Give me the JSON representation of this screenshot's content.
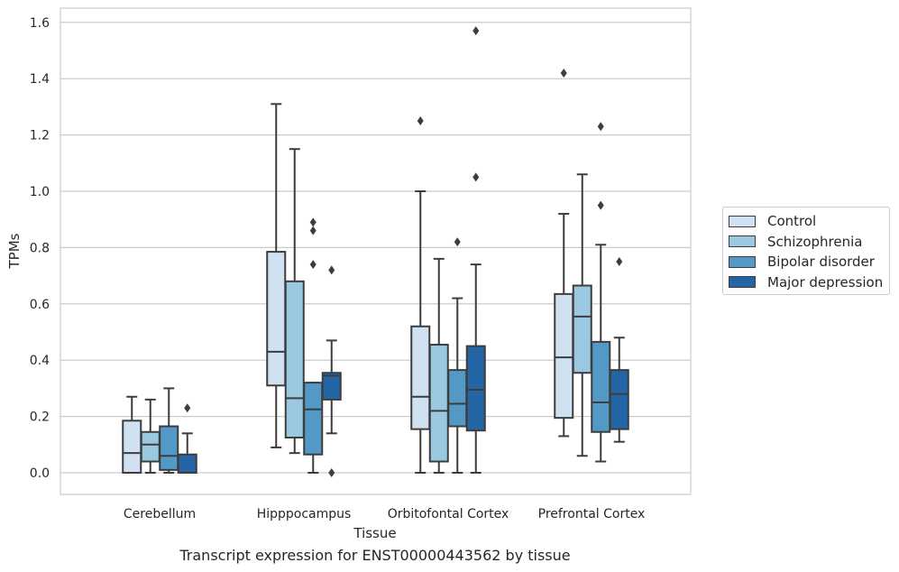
{
  "chart_data": {
    "type": "box",
    "title": "Transcript expression for ENST00000443562 by tissue",
    "xlabel": "Tissue",
    "ylabel": "TPMs",
    "ylim": [
      -0.08,
      1.65
    ],
    "yticks": [
      0.0,
      0.2,
      0.4,
      0.6,
      0.8,
      1.0,
      1.2,
      1.4,
      1.6
    ],
    "ytick_labels": [
      "0.0",
      "0.2",
      "0.4",
      "0.6",
      "0.8",
      "1.0",
      "1.2",
      "1.4",
      "1.6"
    ],
    "grid": "horizontal",
    "legend_position": "right",
    "categories": [
      "Cerebellum",
      "Hipppocampus",
      "Orbitofontal Cortex",
      "Prefrontal Cortex"
    ],
    "series": [
      {
        "name": "Control",
        "color": "#d0e1f2",
        "boxes": [
          {
            "whisker_low": 0.0,
            "q1": 0.0,
            "median": 0.07,
            "q3": 0.185,
            "whisker_high": 0.27,
            "outliers": []
          },
          {
            "whisker_low": 0.09,
            "q1": 0.31,
            "median": 0.43,
            "q3": 0.785,
            "whisker_high": 1.31,
            "outliers": []
          },
          {
            "whisker_low": 0.0,
            "q1": 0.155,
            "median": 0.27,
            "q3": 0.52,
            "whisker_high": 1.0,
            "outliers": [
              1.25
            ]
          },
          {
            "whisker_low": 0.13,
            "q1": 0.195,
            "median": 0.41,
            "q3": 0.635,
            "whisker_high": 0.92,
            "outliers": [
              1.42
            ]
          }
        ]
      },
      {
        "name": "Schizophrenia",
        "color": "#9ac8e0",
        "boxes": [
          {
            "whisker_low": 0.0,
            "q1": 0.04,
            "median": 0.1,
            "q3": 0.145,
            "whisker_high": 0.26,
            "outliers": []
          },
          {
            "whisker_low": 0.07,
            "q1": 0.125,
            "median": 0.265,
            "q3": 0.68,
            "whisker_high": 1.15,
            "outliers": []
          },
          {
            "whisker_low": 0.0,
            "q1": 0.04,
            "median": 0.22,
            "q3": 0.455,
            "whisker_high": 0.76,
            "outliers": []
          },
          {
            "whisker_low": 0.06,
            "q1": 0.355,
            "median": 0.555,
            "q3": 0.665,
            "whisker_high": 1.06,
            "outliers": []
          }
        ]
      },
      {
        "name": "Bipolar disorder",
        "color": "#5399c6",
        "boxes": [
          {
            "whisker_low": 0.0,
            "q1": 0.01,
            "median": 0.06,
            "q3": 0.165,
            "whisker_high": 0.3,
            "outliers": []
          },
          {
            "whisker_low": 0.0,
            "q1": 0.065,
            "median": 0.225,
            "q3": 0.32,
            "whisker_high": 0.32,
            "outliers": [
              0.74,
              0.86,
              0.89
            ]
          },
          {
            "whisker_low": 0.0,
            "q1": 0.165,
            "median": 0.245,
            "q3": 0.365,
            "whisker_high": 0.62,
            "outliers": [
              0.82
            ]
          },
          {
            "whisker_low": 0.04,
            "q1": 0.145,
            "median": 0.25,
            "q3": 0.465,
            "whisker_high": 0.81,
            "outliers": [
              0.95,
              1.23
            ]
          }
        ]
      },
      {
        "name": "Major depression",
        "color": "#2365a5",
        "boxes": [
          {
            "whisker_low": 0.0,
            "q1": 0.0,
            "median": 0.0,
            "q3": 0.065,
            "whisker_high": 0.14,
            "outliers": [
              0.23
            ]
          },
          {
            "whisker_low": 0.14,
            "q1": 0.26,
            "median": 0.345,
            "q3": 0.355,
            "whisker_high": 0.47,
            "outliers": [
              0.0,
              0.72
            ]
          },
          {
            "whisker_low": 0.0,
            "q1": 0.15,
            "median": 0.295,
            "q3": 0.45,
            "whisker_high": 0.74,
            "outliers": [
              1.05,
              1.57
            ]
          },
          {
            "whisker_low": 0.11,
            "q1": 0.155,
            "median": 0.28,
            "q3": 0.365,
            "whisker_high": 0.48,
            "outliers": [
              0.75
            ]
          }
        ]
      }
    ]
  }
}
